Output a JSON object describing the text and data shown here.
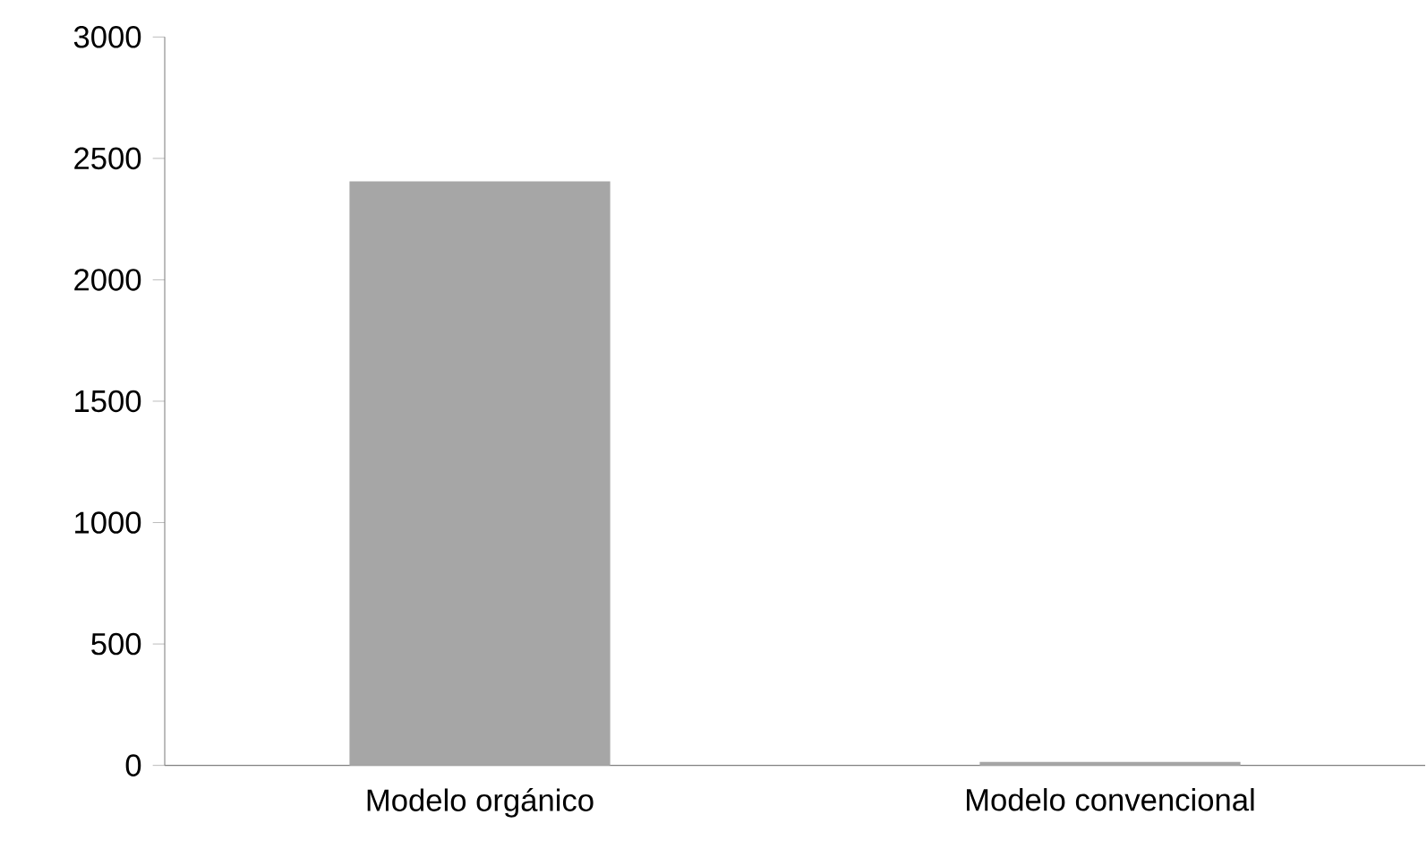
{
  "chart_data": {
    "type": "bar",
    "categories": [
      "Modelo orgánico",
      "Modelo convencional"
    ],
    "values": [
      2400,
      8
    ],
    "color": "#a6a6a6",
    "ylim": [
      0,
      3000
    ],
    "yticks": [
      0,
      500,
      1000,
      1500,
      2000,
      2500,
      3000
    ],
    "grid": false
  }
}
